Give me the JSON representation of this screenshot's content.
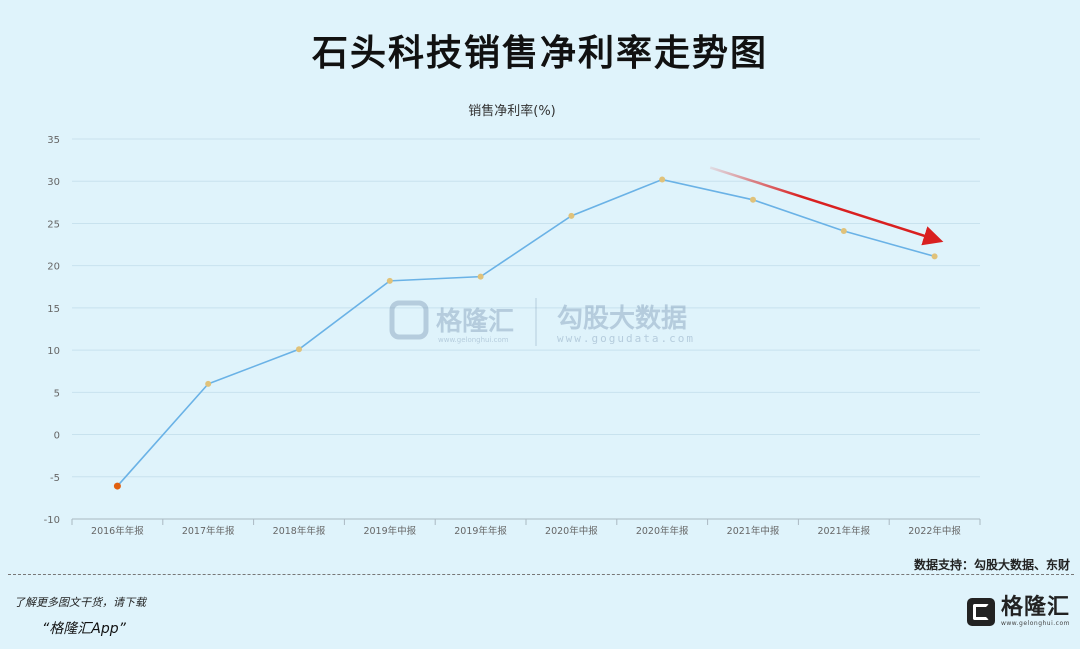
{
  "page": {
    "title": "石头科技销售净利率走势图",
    "source": "数据支持：勾股大数据、东财",
    "promo_line1": "了解更多图文干货，请下载",
    "promo_line2": "“格隆汇App”",
    "brand_name": "格隆汇",
    "brand_url": "www.gelonghui.com"
  },
  "watermark": {
    "left_name": "格隆汇",
    "left_url": "www.gelonghui.com",
    "right_name": "勾股大数据",
    "right_url": "www.gogudata.com"
  },
  "chart_data": {
    "type": "line",
    "title": "销售净利率(%)",
    "xlabel": "",
    "ylabel": "",
    "categories": [
      "2016年年报",
      "2017年年报",
      "2018年年报",
      "2019年中报",
      "2019年年报",
      "2020年中报",
      "2020年年报",
      "2021年中报",
      "2021年年报",
      "2022年中报"
    ],
    "series": [
      {
        "values": [
          -6.1,
          6.0,
          10.1,
          18.2,
          18.7,
          25.9,
          30.2,
          27.8,
          24.1,
          21.1
        ]
      }
    ],
    "ylim": [
      -10,
      35
    ],
    "yticks": [
      -10,
      -5,
      0,
      5,
      10,
      15,
      20,
      25,
      30,
      35
    ],
    "grid": true,
    "colors": {
      "line": "#6ab2e6",
      "point": "#e0c27a",
      "negative_point": "#e06010",
      "arrow": "#d92020"
    },
    "annotation": "red downward trend arrow from 2020年年报 to 2022年中报"
  }
}
